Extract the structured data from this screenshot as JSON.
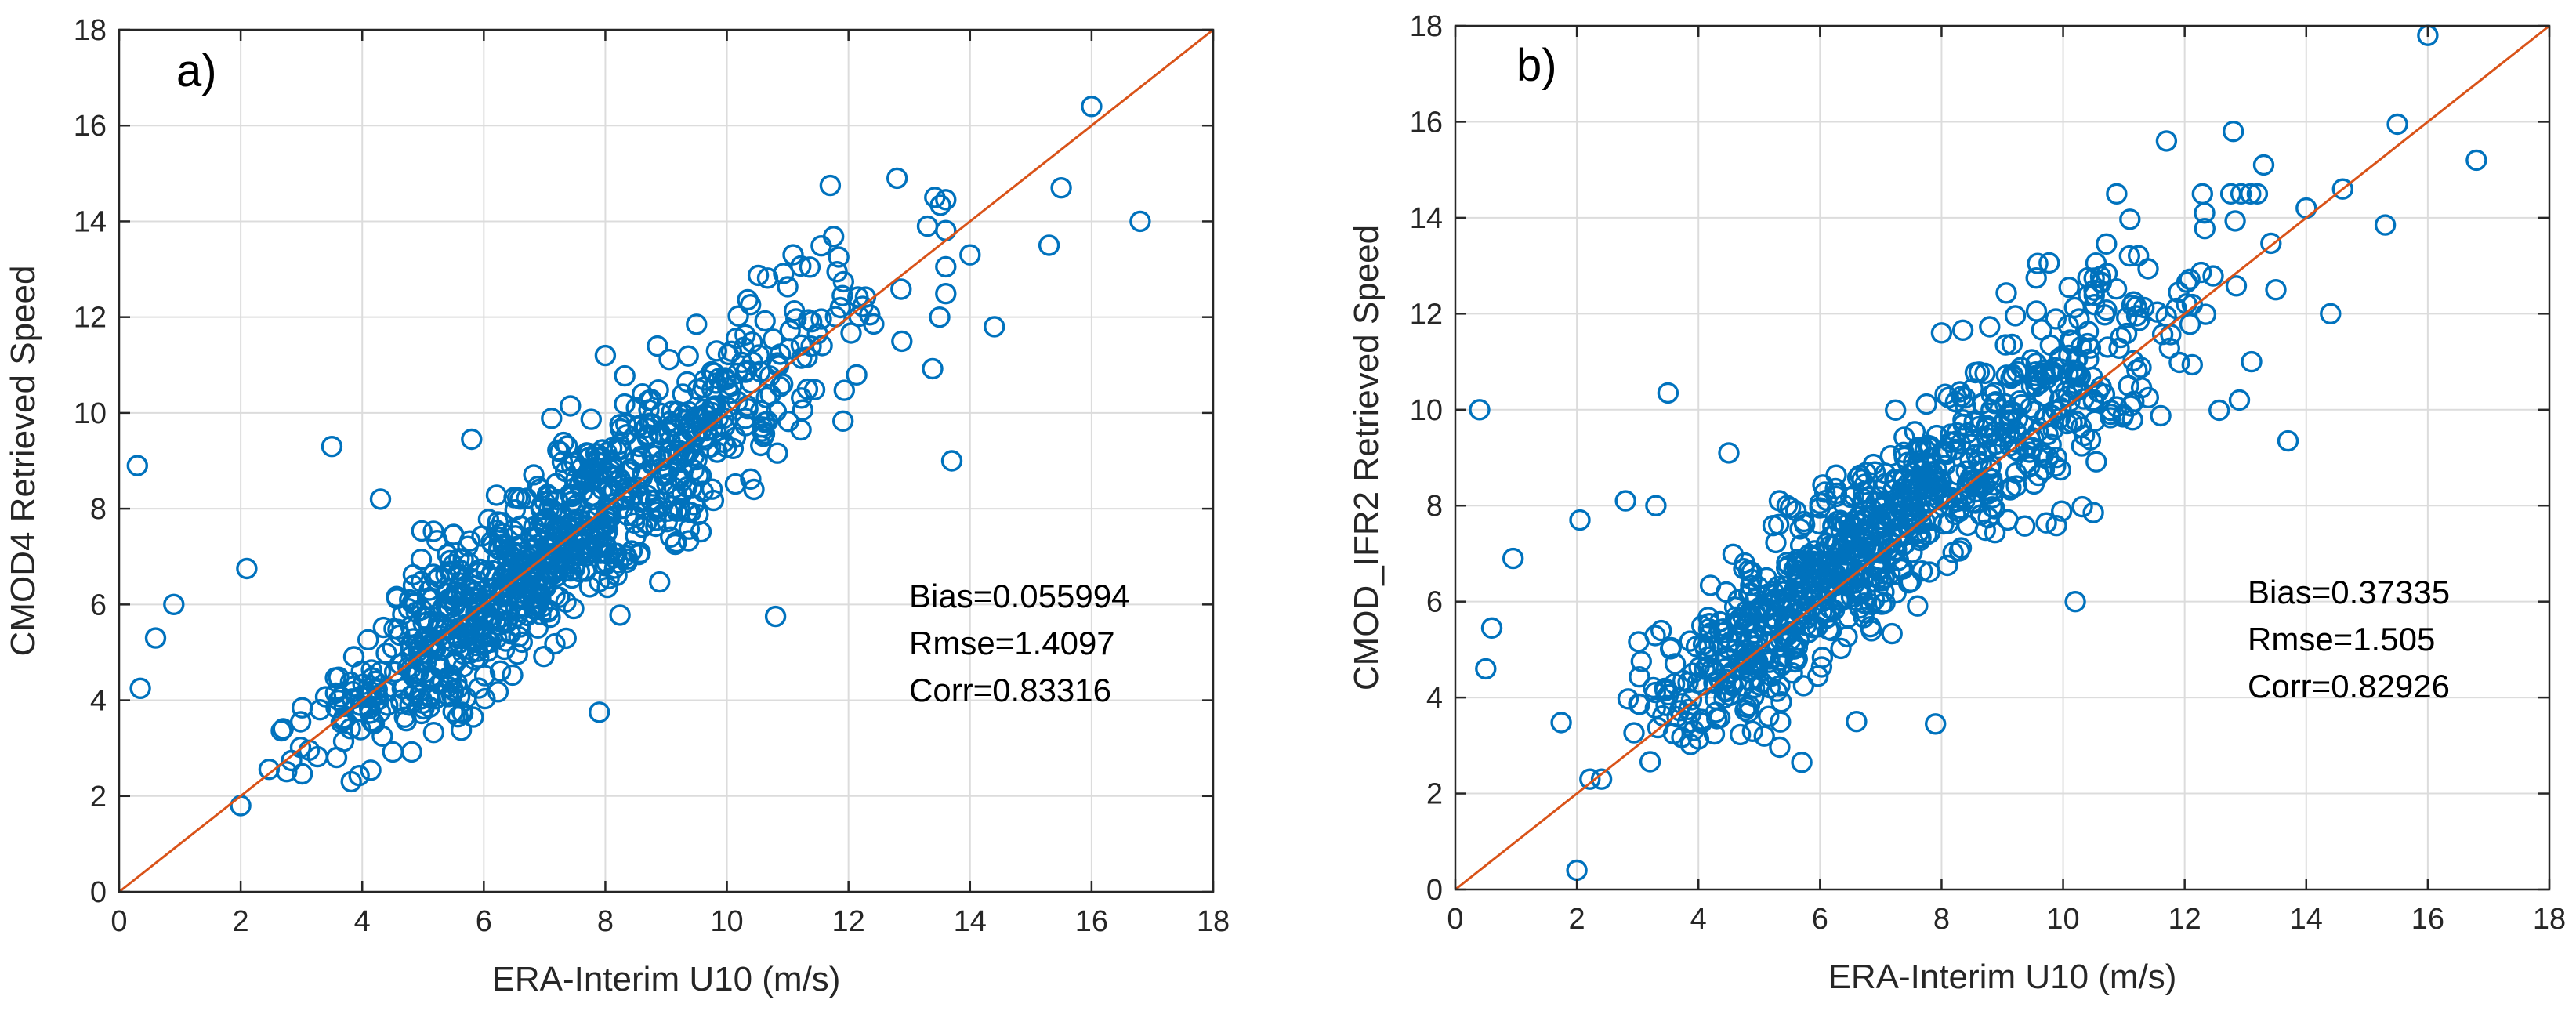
{
  "colors": {
    "points": "#0072bd",
    "reference_line": "#d95319",
    "grid": "#dcdcdc",
    "axis": "#262626"
  },
  "chart_data": [
    {
      "type": "scatter",
      "panel_label": "a)",
      "xlabel": "ERA-Interim U10 (m/s)",
      "ylabel": "CMOD4 Retrieved  Speed",
      "xlim": [
        0,
        18
      ],
      "ylim": [
        0,
        18
      ],
      "xticks": [
        "0",
        "2",
        "4",
        "6",
        "8",
        "10",
        "12",
        "14",
        "16",
        "18"
      ],
      "yticks": [
        "0",
        "2",
        "4",
        "6",
        "8",
        "10",
        "12",
        "14",
        "16",
        "18"
      ],
      "grid": true,
      "reference_line": [
        [
          0,
          0
        ],
        [
          18,
          18
        ]
      ],
      "stats": [
        "Bias=0.055994",
        "Rmse=1.4097",
        "Corr=0.83316"
      ],
      "sample_seed": 11,
      "sample_n": 900,
      "bias": 0.056,
      "spread": 0.95,
      "outliers": [
        [
          0.3,
          8.9
        ],
        [
          0.35,
          4.25
        ],
        [
          0.6,
          5.3
        ],
        [
          0.9,
          6.0
        ],
        [
          2.0,
          1.8
        ],
        [
          2.1,
          6.75
        ],
        [
          3.5,
          9.3
        ],
        [
          13.7,
          9.0
        ],
        [
          16.0,
          16.4
        ],
        [
          16.8,
          14.0
        ],
        [
          12.8,
          14.9
        ],
        [
          11.7,
          14.75
        ],
        [
          15.5,
          14.7
        ],
        [
          15.3,
          13.5
        ],
        [
          14.4,
          11.8
        ],
        [
          13.3,
          13.9
        ],
        [
          13.5,
          12.0
        ],
        [
          10.8,
          5.75
        ],
        [
          7.9,
          3.75
        ],
        [
          4.3,
          8.2
        ],
        [
          5.8,
          9.45
        ],
        [
          8.0,
          11.2
        ],
        [
          9.5,
          11.85
        ],
        [
          14.0,
          13.3
        ],
        [
          11.9,
          12.45
        ]
      ]
    },
    {
      "type": "scatter",
      "panel_label": "b)",
      "xlabel": "ERA-Interim U10 (m/s)",
      "ylabel": "CMOD_IFR2 Retrieved  Speed",
      "xlim": [
        0,
        18
      ],
      "ylim": [
        0,
        18
      ],
      "xticks": [
        "0",
        "2",
        "4",
        "6",
        "8",
        "10",
        "12",
        "14",
        "16",
        "18"
      ],
      "yticks": [
        "0",
        "2",
        "4",
        "6",
        "8",
        "10",
        "12",
        "14",
        "16",
        "18"
      ],
      "grid": true,
      "reference_line": [
        [
          0,
          0
        ],
        [
          18,
          18
        ]
      ],
      "stats": [
        "Bias=0.37335",
        "Rmse=1.505",
        "Corr=0.82926"
      ],
      "sample_seed": 29,
      "sample_n": 900,
      "bias": 0.37,
      "spread": 1.0,
      "outliers": [
        [
          0.4,
          10.0
        ],
        [
          0.5,
          4.6
        ],
        [
          0.6,
          5.45
        ],
        [
          0.95,
          6.9
        ],
        [
          2.0,
          0.4
        ],
        [
          2.05,
          7.7
        ],
        [
          3.5,
          10.35
        ],
        [
          3.3,
          8.0
        ],
        [
          2.8,
          8.1
        ],
        [
          13.7,
          9.35
        ],
        [
          16.0,
          17.8
        ],
        [
          16.8,
          15.2
        ],
        [
          12.8,
          15.8
        ],
        [
          11.7,
          15.6
        ],
        [
          15.5,
          15.95
        ],
        [
          15.3,
          13.85
        ],
        [
          14.4,
          12.0
        ],
        [
          13.3,
          15.1
        ],
        [
          13.5,
          12.5
        ],
        [
          10.2,
          6.0
        ],
        [
          7.9,
          3.45
        ],
        [
          6.6,
          3.5
        ],
        [
          5.7,
          2.65
        ],
        [
          4.5,
          9.1
        ],
        [
          8.0,
          11.6
        ],
        [
          14.6,
          14.6
        ],
        [
          12.9,
          10.2
        ],
        [
          13.1,
          11.0
        ],
        [
          14.0,
          14.2
        ],
        [
          11.9,
          12.45
        ]
      ]
    }
  ]
}
